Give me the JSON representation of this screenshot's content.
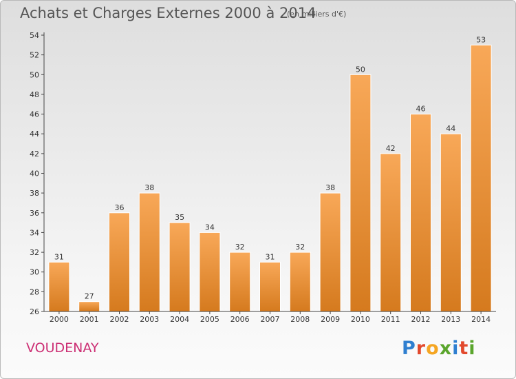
{
  "header": {
    "title": "Achats et Charges Externes 2000 à 2014",
    "unit": "(en milliers d'€)"
  },
  "footer": {
    "town": "VOUDENAY",
    "logo": "Proxiti",
    "logo_colors": [
      "#2f7fd0",
      "#e2492d",
      "#f5a623",
      "#5aa52c",
      "#2f7fd0",
      "#e2492d",
      "#5aa52c"
    ]
  },
  "colors": {
    "bar_light": "#f8a858",
    "bar_dark": "#d57a1e",
    "title": "#555555",
    "town": "#cc2f74"
  },
  "chart_data": {
    "type": "bar",
    "title": "Achats et Charges Externes 2000 à 2014",
    "subtitle": "(en milliers d'€)",
    "categories": [
      "2000",
      "2001",
      "2002",
      "2003",
      "2004",
      "2005",
      "2006",
      "2007",
      "2008",
      "2009",
      "2010",
      "2011",
      "2012",
      "2013",
      "2014"
    ],
    "values": [
      31,
      27,
      36,
      38,
      35,
      34,
      32,
      31,
      32,
      38,
      50,
      42,
      46,
      44,
      53
    ],
    "ylim": [
      26,
      54
    ],
    "yticks": [
      26,
      28,
      30,
      32,
      34,
      36,
      38,
      40,
      42,
      44,
      46,
      48,
      50,
      52,
      54
    ],
    "grid": false,
    "data_labels": true
  }
}
